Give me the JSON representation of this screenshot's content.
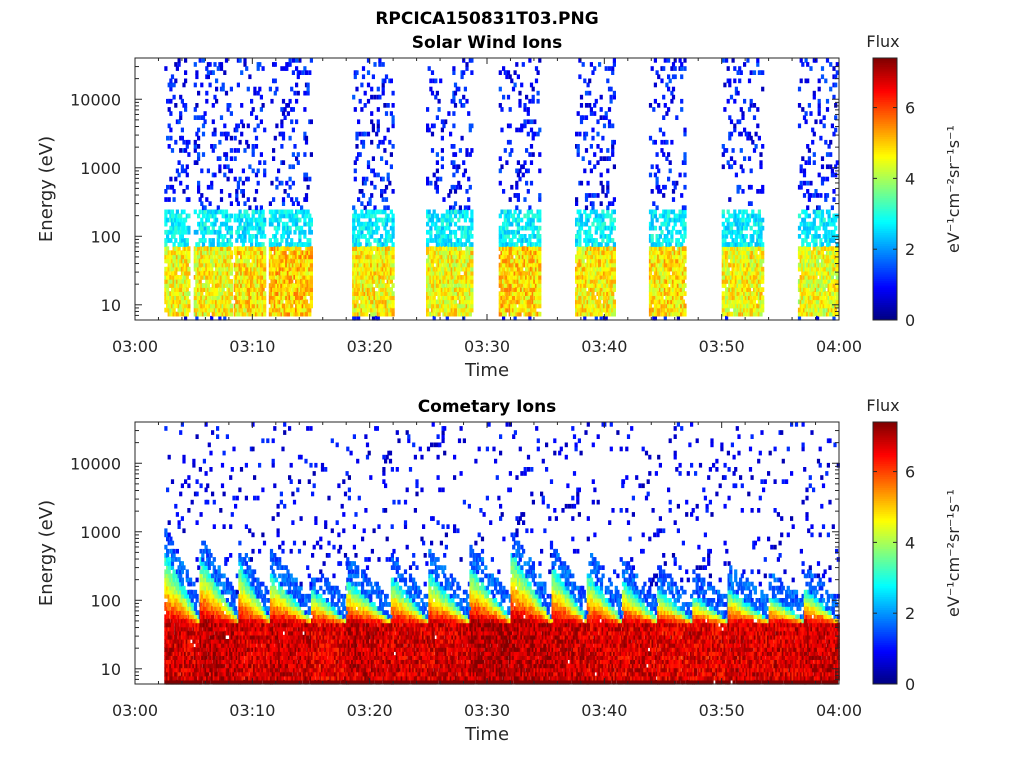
{
  "figure_title": "RPCICA150831T03.PNG",
  "chart_data": [
    {
      "type": "heatmap",
      "title": "Solar Wind Ions",
      "xlabel": "Time",
      "ylabel": "Energy (eV)",
      "x_ticks": [
        "03:00",
        "03:10",
        "03:20",
        "03:30",
        "03:40",
        "03:50",
        "04:00"
      ],
      "xlim_minutes": [
        0,
        60
      ],
      "y_scale": "log",
      "y_ticks": [
        "10",
        "100",
        "1000",
        "10000"
      ],
      "ylim": [
        6,
        40000
      ],
      "colorbar": {
        "title": "Flux",
        "label": "eV⁻¹cm⁻²sr⁻¹s⁻¹",
        "ticks": [
          "0",
          "2",
          "4",
          "6"
        ],
        "range": [
          0,
          7.4
        ],
        "colormap": "jet"
      },
      "bursts": [
        {
          "start_min": 2.5,
          "end_min": 4.6,
          "core_energy_eV": [
            10,
            60
          ],
          "core_flux": 4.6
        },
        {
          "start_min": 5.0,
          "end_min": 8.2,
          "core_energy_eV": [
            10,
            60
          ],
          "core_flux": 4.6
        },
        {
          "start_min": 8.4,
          "end_min": 11.0,
          "core_energy_eV": [
            10,
            60
          ],
          "core_flux": 4.8
        },
        {
          "start_min": 11.4,
          "end_min": 15.0,
          "core_energy_eV": [
            15,
            50
          ],
          "core_flux": 5.0
        },
        {
          "start_min": 18.5,
          "end_min": 22.0,
          "core_energy_eV": [
            15,
            50
          ],
          "core_flux": 4.7
        },
        {
          "start_min": 24.8,
          "end_min": 28.6,
          "core_energy_eV": [
            15,
            50
          ],
          "core_flux": 4.6
        },
        {
          "start_min": 31.0,
          "end_min": 34.5,
          "core_energy_eV": [
            15,
            60
          ],
          "core_flux": 4.9
        },
        {
          "start_min": 37.5,
          "end_min": 40.8,
          "core_energy_eV": [
            15,
            50
          ],
          "core_flux": 4.7
        },
        {
          "start_min": 43.8,
          "end_min": 46.8,
          "core_energy_eV": [
            15,
            50
          ],
          "core_flux": 4.8
        },
        {
          "start_min": 50.0,
          "end_min": 53.5,
          "core_energy_eV": [
            15,
            50
          ],
          "core_flux": 4.6
        },
        {
          "start_min": 56.5,
          "end_min": 59.8,
          "core_energy_eV": [
            15,
            50
          ],
          "core_flux": 4.5
        }
      ]
    },
    {
      "type": "heatmap",
      "title": "Cometary Ions",
      "xlabel": "Time",
      "ylabel": "Energy (eV)",
      "x_ticks": [
        "03:00",
        "03:10",
        "03:20",
        "03:30",
        "03:40",
        "03:50",
        "04:00"
      ],
      "xlim_minutes": [
        0,
        60
      ],
      "y_scale": "log",
      "y_ticks": [
        "10",
        "100",
        "1000",
        "10000"
      ],
      "ylim": [
        6,
        40000
      ],
      "colorbar": {
        "title": "Flux",
        "label": "eV⁻¹cm⁻²sr⁻¹s⁻¹",
        "ticks": [
          "0",
          "2",
          "4",
          "6"
        ],
        "range": [
          0,
          7.4
        ],
        "colormap": "jet"
      },
      "bursts": [
        {
          "start_min": 2.5,
          "end_min": 5.5,
          "peak_min": 3.0,
          "peak_energy_eV": 500,
          "core_flux": 7.0
        },
        {
          "start_min": 5.5,
          "end_min": 8.8,
          "peak_min": 6.0,
          "peak_energy_eV": 400,
          "core_flux": 7.2
        },
        {
          "start_min": 8.8,
          "end_min": 11.5,
          "peak_min": 9.0,
          "peak_energy_eV": 350,
          "core_flux": 7.0
        },
        {
          "start_min": 11.5,
          "end_min": 15.0,
          "peak_min": 12.0,
          "peak_energy_eV": 250,
          "core_flux": 7.1
        },
        {
          "start_min": 15.0,
          "end_min": 18.0,
          "peak_min": 15.5,
          "peak_energy_eV": 150,
          "core_flux": 6.9
        },
        {
          "start_min": 18.0,
          "end_min": 21.8,
          "peak_min": 18.5,
          "peak_energy_eV": 200,
          "core_flux": 7.1
        },
        {
          "start_min": 21.8,
          "end_min": 25.0,
          "peak_min": 22.0,
          "peak_energy_eV": 220,
          "core_flux": 7.0
        },
        {
          "start_min": 25.0,
          "end_min": 28.5,
          "peak_min": 25.5,
          "peak_energy_eV": 250,
          "core_flux": 7.0
        },
        {
          "start_min": 28.5,
          "end_min": 32.0,
          "peak_min": 29.0,
          "peak_energy_eV": 300,
          "core_flux": 7.3
        },
        {
          "start_min": 32.0,
          "end_min": 35.5,
          "peak_min": 32.5,
          "peak_energy_eV": 500,
          "core_flux": 7.2
        },
        {
          "start_min": 35.5,
          "end_min": 38.5,
          "peak_min": 36.0,
          "peak_energy_eV": 300,
          "core_flux": 7.1
        },
        {
          "start_min": 38.5,
          "end_min": 41.5,
          "peak_min": 39.0,
          "peak_energy_eV": 250,
          "core_flux": 7.0
        },
        {
          "start_min": 41.5,
          "end_min": 44.5,
          "peak_min": 42.0,
          "peak_energy_eV": 200,
          "core_flux": 7.0
        },
        {
          "start_min": 44.5,
          "end_min": 47.5,
          "peak_min": 45.0,
          "peak_energy_eV": 150,
          "core_flux": 6.9
        },
        {
          "start_min": 47.5,
          "end_min": 50.5,
          "peak_min": 48.0,
          "peak_energy_eV": 120,
          "core_flux": 6.9
        },
        {
          "start_min": 50.5,
          "end_min": 54.0,
          "peak_min": 51.0,
          "peak_energy_eV": 150,
          "core_flux": 7.0
        },
        {
          "start_min": 54.0,
          "end_min": 57.0,
          "peak_min": 54.5,
          "peak_energy_eV": 120,
          "core_flux": 7.0
        },
        {
          "start_min": 57.0,
          "end_min": 59.9,
          "peak_min": 57.5,
          "peak_energy_eV": 150,
          "core_flux": 7.1
        }
      ]
    }
  ]
}
